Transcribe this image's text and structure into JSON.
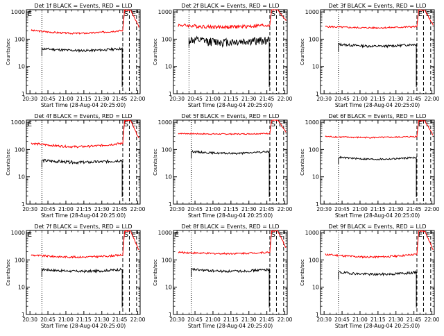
{
  "time_axis_label": "Start Time (28-Aug-04 20:25:00)",
  "y_axis_label": "Counts/sec",
  "x_tick_labels": [
    "20:30",
    "20:45",
    "21:00",
    "21:15",
    "21:30",
    "21:45",
    "22:00"
  ],
  "y_tick_labels": [
    "1",
    "10",
    "100",
    "1000"
  ],
  "colors": {
    "events": "#000000",
    "lld": "#ff0000",
    "axes": "#000000"
  },
  "chart_data": [
    {
      "type": "line",
      "title": "Det 1f BLACK = Events, RED = LLD",
      "markers": [
        "E",
        "S",
        "E"
      ],
      "x_unit": "minutes since 20:25:00",
      "xlim": [
        2,
        97
      ],
      "ylim": [
        1,
        1200
      ],
      "y_scale": "log",
      "events_x": [
        15,
        82
      ],
      "events_base": 45,
      "events_noise": 0.1,
      "lld_base": 210,
      "lld_dip": 0.78,
      "lld_noise": 0.07,
      "flare": {
        "start": 82.5,
        "end": 89,
        "peak": 1150,
        "decay_to": 280
      }
    },
    {
      "type": "line",
      "title": "Det 2f BLACK = Events, RED = LLD",
      "markers": [
        "S",
        "E"
      ],
      "x_unit": "minutes since 20:25:00",
      "xlim": [
        2,
        97
      ],
      "ylim": [
        1,
        1200
      ],
      "y_scale": "log",
      "events_x": [
        15,
        82
      ],
      "events_base": 95,
      "events_noise": 0.35,
      "lld_base": 330,
      "lld_dip": 0.85,
      "lld_noise": 0.15,
      "flare": {
        "start": 82.5,
        "end": 89,
        "peak": 1200,
        "decay_to": 470
      }
    },
    {
      "type": "line",
      "title": "Det 3f BLACK = Events, RED = LLD",
      "markers": [
        "E",
        "E"
      ],
      "x_unit": "minutes since 20:25:00",
      "xlim": [
        2,
        97
      ],
      "ylim": [
        1,
        1200
      ],
      "y_scale": "log",
      "events_x": [
        17,
        82
      ],
      "events_base": 65,
      "events_noise": 0.1,
      "lld_base": 290,
      "lld_dip": 0.9,
      "lld_noise": 0.07,
      "flare": {
        "start": 82.5,
        "end": 89,
        "peak": 1150,
        "decay_to": 330
      }
    },
    {
      "type": "line",
      "title": "Det 4f BLACK = Events, RED = LLD",
      "markers": [
        "E",
        "S",
        "E"
      ],
      "x_unit": "minutes since 20:25:00",
      "xlim": [
        2,
        97
      ],
      "ylim": [
        1,
        1200
      ],
      "y_scale": "log",
      "events_x": [
        15,
        82
      ],
      "events_base": 40,
      "events_noise": 0.12,
      "lld_base": 170,
      "lld_dip": 0.75,
      "lld_noise": 0.09,
      "flare": {
        "start": 82.5,
        "end": 89,
        "peak": 1150,
        "decay_to": 250
      }
    },
    {
      "type": "line",
      "title": "Det 5f BLACK = Events, RED = LLD",
      "markers": [
        "S",
        "E"
      ],
      "x_unit": "minutes since 20:25:00",
      "xlim": [
        2,
        97
      ],
      "ylim": [
        1,
        1200
      ],
      "y_scale": "log",
      "events_x": [
        17,
        82
      ],
      "events_base": 85,
      "events_noise": 0.08,
      "lld_base": 390,
      "lld_dip": 0.95,
      "lld_noise": 0.05,
      "flare": {
        "start": 82.5,
        "end": 89,
        "peak": 1200,
        "decay_to": 420
      }
    },
    {
      "type": "line",
      "title": "Det 6f BLACK = Events, RED = LLD",
      "markers": [
        "E",
        "E"
      ],
      "x_unit": "minutes since 20:25:00",
      "xlim": [
        2,
        97
      ],
      "ylim": [
        1,
        1200
      ],
      "y_scale": "log",
      "events_x": [
        17,
        82
      ],
      "events_base": 52,
      "events_noise": 0.07,
      "lld_base": 300,
      "lld_dip": 0.92,
      "lld_noise": 0.06,
      "flare": {
        "start": 82.5,
        "end": 89,
        "peak": 1150,
        "decay_to": 340
      }
    },
    {
      "type": "line",
      "title": "Det 7f BLACK = Events, RED = LLD",
      "markers": [
        "E",
        "S",
        "E"
      ],
      "x_unit": "minutes since 20:25:00",
      "xlim": [
        2,
        97
      ],
      "ylim": [
        1,
        1200
      ],
      "y_scale": "log",
      "events_x": [
        15,
        82
      ],
      "events_base": 45,
      "events_noise": 0.1,
      "lld_base": 150,
      "lld_dip": 0.85,
      "lld_noise": 0.08,
      "flare": {
        "start": 82.5,
        "end": 89,
        "peak": 1150,
        "decay_to": 230
      }
    },
    {
      "type": "line",
      "title": "Det 8f BLACK = Events, RED = LLD",
      "markers": [
        "E",
        "S",
        "E"
      ],
      "x_unit": "minutes since 20:25:00",
      "xlim": [
        2,
        97
      ],
      "ylim": [
        1,
        1200
      ],
      "y_scale": "log",
      "events_x": [
        17,
        82
      ],
      "events_base": 45,
      "events_noise": 0.1,
      "lld_base": 190,
      "lld_dip": 0.9,
      "lld_noise": 0.07,
      "flare": {
        "start": 82.5,
        "end": 89,
        "peak": 1150,
        "decay_to": 280
      }
    },
    {
      "type": "line",
      "title": "Det 9f BLACK = Events, RED = LLD",
      "markers": [
        "E",
        "E"
      ],
      "x_unit": "minutes since 20:25:00",
      "xlim": [
        2,
        97
      ],
      "ylim": [
        1,
        1200
      ],
      "y_scale": "log",
      "events_x": [
        17,
        82
      ],
      "events_base": 35,
      "events_noise": 0.1,
      "lld_base": 160,
      "lld_dip": 0.8,
      "lld_noise": 0.08,
      "flare": {
        "start": 82.5,
        "end": 89,
        "peak": 1150,
        "decay_to": 240
      }
    }
  ]
}
